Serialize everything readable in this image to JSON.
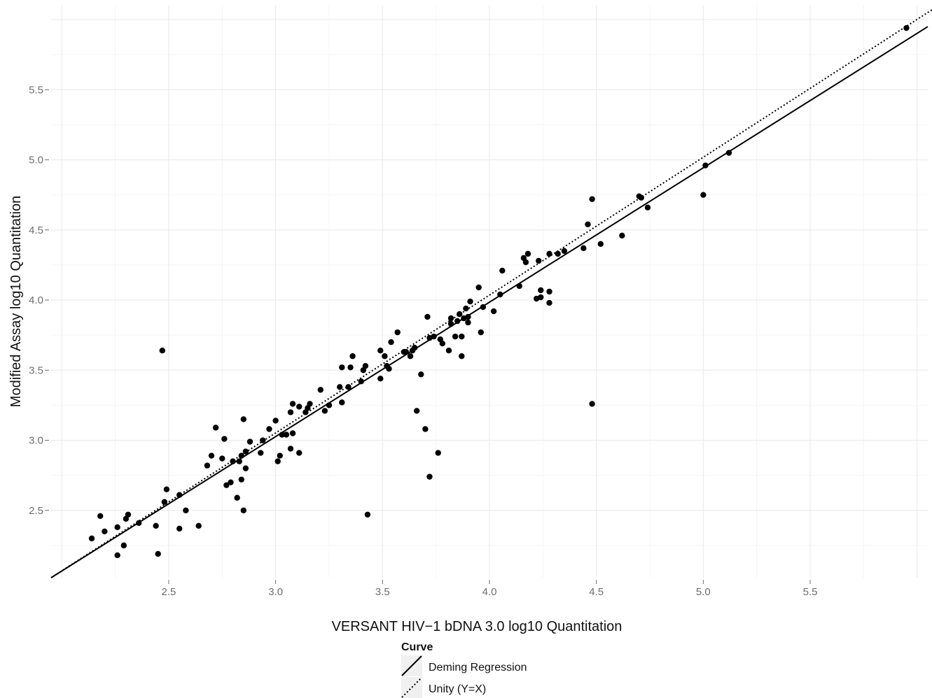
{
  "chart_data": {
    "type": "scatter",
    "title": "",
    "xlabel": "VERSANT HIV−1 bDNA 3.0 log10 Quantitation",
    "ylabel": "Modified Assay log10 Quantitation",
    "xlim": [
      1.95,
      6.05
    ],
    "ylim": [
      2.02,
      6.1
    ],
    "xticks": [
      2.5,
      3.0,
      3.5,
      4.0,
      4.5,
      5.0,
      5.5
    ],
    "xtick_labels": [
      "2.5",
      "3.0",
      "3.5",
      "4.0",
      "4.5",
      "5.0",
      "5.5"
    ],
    "yticks": [
      2.5,
      3.0,
      3.5,
      4.0,
      4.5,
      5.0,
      5.5
    ],
    "ytick_labels": [
      "2.5",
      "3.0",
      "3.5",
      "4.0",
      "4.5",
      "5.0",
      "5.5"
    ],
    "grid": true,
    "legend_placement": "bottom",
    "legend": {
      "title": "Curve",
      "entries": [
        "Deming Regression",
        "Unity (Y=X)"
      ]
    },
    "series": [
      {
        "type": "scatter",
        "color": "#000000",
        "points": [
          [
            2.14,
            2.3
          ],
          [
            2.18,
            2.46
          ],
          [
            2.2,
            2.35
          ],
          [
            2.26,
            2.38
          ],
          [
            2.26,
            2.18
          ],
          [
            2.29,
            2.25
          ],
          [
            2.3,
            2.44
          ],
          [
            2.31,
            2.47
          ],
          [
            2.36,
            2.41
          ],
          [
            2.44,
            2.39
          ],
          [
            2.45,
            2.19
          ],
          [
            2.47,
            3.64
          ],
          [
            2.48,
            2.56
          ],
          [
            2.49,
            2.65
          ],
          [
            2.55,
            2.61
          ],
          [
            2.55,
            2.37
          ],
          [
            2.58,
            2.5
          ],
          [
            2.64,
            2.39
          ],
          [
            2.68,
            2.82
          ],
          [
            2.7,
            2.89
          ],
          [
            2.72,
            3.09
          ],
          [
            2.75,
            2.87
          ],
          [
            2.76,
            3.01
          ],
          [
            2.77,
            2.68
          ],
          [
            2.79,
            2.7
          ],
          [
            2.8,
            2.85
          ],
          [
            2.82,
            2.59
          ],
          [
            2.83,
            2.85
          ],
          [
            2.84,
            2.89
          ],
          [
            2.84,
            2.72
          ],
          [
            2.85,
            2.5
          ],
          [
            2.85,
            3.15
          ],
          [
            2.86,
            2.92
          ],
          [
            2.86,
            2.8
          ],
          [
            2.88,
            2.99
          ],
          [
            2.93,
            2.91
          ],
          [
            2.94,
            3.0
          ],
          [
            2.97,
            3.08
          ],
          [
            3.0,
            3.14
          ],
          [
            3.01,
            2.85
          ],
          [
            3.02,
            2.89
          ],
          [
            3.03,
            3.04
          ],
          [
            3.05,
            3.04
          ],
          [
            3.07,
            3.2
          ],
          [
            3.07,
            2.94
          ],
          [
            3.08,
            3.26
          ],
          [
            3.08,
            3.05
          ],
          [
            3.11,
            3.24
          ],
          [
            3.11,
            2.91
          ],
          [
            3.14,
            3.2
          ],
          [
            3.15,
            3.23
          ],
          [
            3.16,
            3.26
          ],
          [
            3.21,
            3.36
          ],
          [
            3.23,
            3.21
          ],
          [
            3.25,
            3.25
          ],
          [
            3.3,
            3.38
          ],
          [
            3.31,
            3.27
          ],
          [
            3.31,
            3.52
          ],
          [
            3.34,
            3.38
          ],
          [
            3.35,
            3.52
          ],
          [
            3.36,
            3.6
          ],
          [
            3.4,
            3.42
          ],
          [
            3.41,
            3.5
          ],
          [
            3.42,
            3.53
          ],
          [
            3.43,
            2.47
          ],
          [
            3.49,
            3.64
          ],
          [
            3.49,
            3.44
          ],
          [
            3.51,
            3.6
          ],
          [
            3.52,
            3.53
          ],
          [
            3.53,
            3.51
          ],
          [
            3.54,
            3.7
          ],
          [
            3.57,
            3.77
          ],
          [
            3.6,
            3.63
          ],
          [
            3.61,
            3.63
          ],
          [
            3.63,
            3.6
          ],
          [
            3.64,
            3.64
          ],
          [
            3.65,
            3.66
          ],
          [
            3.66,
            3.21
          ],
          [
            3.68,
            3.47
          ],
          [
            3.7,
            3.08
          ],
          [
            3.71,
            3.88
          ],
          [
            3.72,
            3.73
          ],
          [
            3.72,
            2.74
          ],
          [
            3.74,
            3.74
          ],
          [
            3.76,
            2.91
          ],
          [
            3.77,
            3.72
          ],
          [
            3.78,
            3.69
          ],
          [
            3.81,
            3.64
          ],
          [
            3.82,
            3.87
          ],
          [
            3.82,
            3.83
          ],
          [
            3.84,
            3.74
          ],
          [
            3.85,
            3.85
          ],
          [
            3.86,
            3.9
          ],
          [
            3.87,
            3.74
          ],
          [
            3.87,
            3.6
          ],
          [
            3.88,
            3.87
          ],
          [
            3.89,
            3.94
          ],
          [
            3.9,
            3.88
          ],
          [
            3.9,
            3.84
          ],
          [
            3.91,
            3.99
          ],
          [
            3.95,
            4.09
          ],
          [
            3.96,
            3.77
          ],
          [
            3.97,
            3.95
          ],
          [
            4.02,
            3.92
          ],
          [
            4.05,
            4.04
          ],
          [
            4.06,
            4.21
          ],
          [
            4.14,
            4.1
          ],
          [
            4.16,
            4.3
          ],
          [
            4.17,
            4.27
          ],
          [
            4.18,
            4.33
          ],
          [
            4.22,
            4.01
          ],
          [
            4.23,
            4.28
          ],
          [
            4.24,
            4.07
          ],
          [
            4.24,
            4.02
          ],
          [
            4.28,
            4.06
          ],
          [
            4.28,
            3.98
          ],
          [
            4.28,
            4.33
          ],
          [
            4.32,
            4.33
          ],
          [
            4.35,
            4.35
          ],
          [
            4.44,
            4.37
          ],
          [
            4.46,
            4.54
          ],
          [
            4.48,
            4.72
          ],
          [
            4.48,
            3.26
          ],
          [
            4.52,
            4.4
          ],
          [
            4.62,
            4.46
          ],
          [
            4.7,
            4.74
          ],
          [
            4.71,
            4.73
          ],
          [
            4.74,
            4.66
          ],
          [
            5.0,
            4.75
          ],
          [
            5.01,
            4.96
          ],
          [
            5.12,
            5.05
          ],
          [
            5.95,
            5.94
          ]
        ]
      },
      {
        "type": "line",
        "name": "Deming Regression",
        "dash": "solid",
        "points": [
          [
            1.95,
            2.02
          ],
          [
            6.05,
            5.95
          ]
        ]
      },
      {
        "type": "line",
        "name": "Unity (Y=X)",
        "dash": "dotted",
        "points": [
          [
            1.95,
            1.95
          ],
          [
            6.1,
            6.1
          ]
        ]
      }
    ]
  }
}
